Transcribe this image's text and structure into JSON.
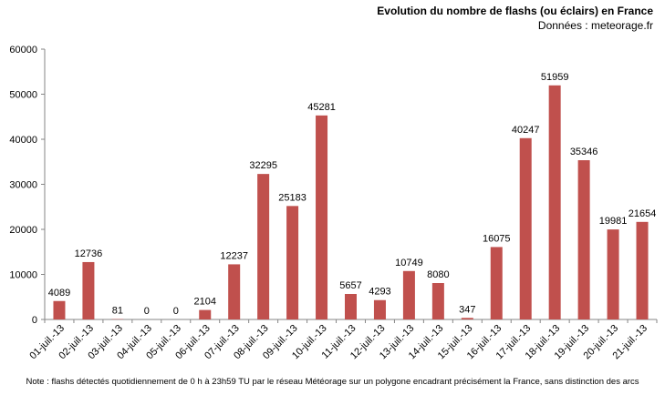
{
  "chart_data": {
    "type": "bar",
    "title": "Evolution du nombre de flashs (ou éclairs)  en France",
    "subtitle": "Données : meteorage.fr",
    "note": "Note : flashs détectés quotidiennement de 0 h à 23h59 TU par le réseau Météorage sur un polygone encadrant précisément la France, sans distinction des arcs",
    "xlabel": "",
    "ylabel": "",
    "categories": [
      "01-juil.-13",
      "02-juil.-13",
      "03-juil.-13",
      "04-juil.-13",
      "05-juil.-13",
      "06-juil.-13",
      "07-juil.-13",
      "08-juil.-13",
      "09-juil.-13",
      "10-juil.-13",
      "11-juil.-13",
      "12-juil.-13",
      "13-juil.-13",
      "14-juil.-13",
      "15-juil.-13",
      "16-juil.-13",
      "17-juil.-13",
      "18-juil.-13",
      "19-juil.-13",
      "20-juil.-13",
      "21-juil.-13"
    ],
    "values": [
      4089,
      12736,
      81,
      0,
      0,
      2104,
      12237,
      32295,
      25183,
      45281,
      5657,
      4293,
      10749,
      8080,
      347,
      16075,
      40247,
      51959,
      35346,
      19981,
      21654
    ],
    "ylim": [
      0,
      60000
    ],
    "yticks": [
      0,
      10000,
      20000,
      30000,
      40000,
      50000,
      60000
    ],
    "grid": false,
    "legend": "none",
    "bar_color": "#C0504D"
  }
}
